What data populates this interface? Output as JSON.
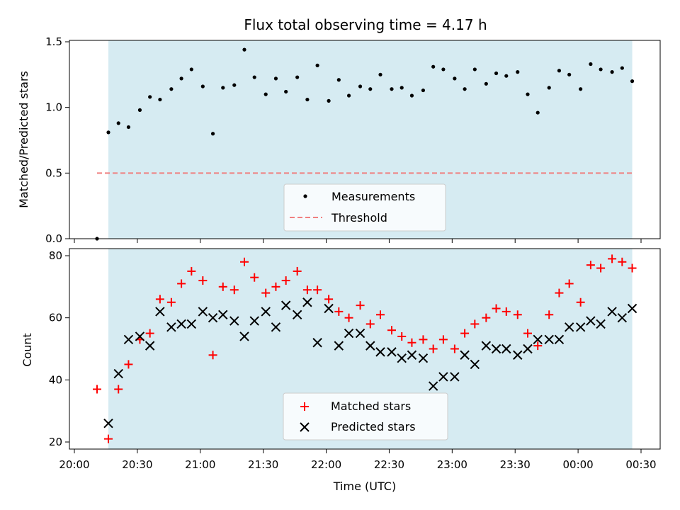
{
  "chart_data": [
    {
      "type": "scatter",
      "title": "Flux total observing time = 4.17 h",
      "xlabel": "",
      "ylabel": "Matched/Predicted stars",
      "ylim": [
        0,
        1.5
      ],
      "yticks": [
        "0.0",
        "0.5",
        "1.0",
        "1.5"
      ],
      "ytick_values": [
        0,
        0.5,
        1.0,
        1.5
      ],
      "observing_window_hours": [
        20.27,
        24.43
      ],
      "threshold": 0.5,
      "legend_location": "lower-center",
      "legend": [
        "Measurements",
        "Threshold"
      ],
      "series": [
        {
          "name": "Measurements",
          "marker": "dot",
          "color": "#000000",
          "x": [
            20.18,
            20.27,
            20.35,
            20.43,
            20.52,
            20.6,
            20.68,
            20.77,
            20.85,
            20.93,
            21.02,
            21.1,
            21.18,
            21.27,
            21.35,
            21.43,
            21.52,
            21.6,
            21.68,
            21.77,
            21.85,
            21.93,
            22.02,
            22.1,
            22.18,
            22.27,
            22.35,
            22.43,
            22.52,
            22.6,
            22.68,
            22.77,
            22.85,
            22.93,
            23.02,
            23.1,
            23.18,
            23.27,
            23.35,
            23.43,
            23.52,
            23.6,
            23.68,
            23.77,
            23.85,
            23.93,
            24.02,
            24.1,
            24.18,
            24.27,
            24.35,
            24.43
          ],
          "y": [
            0.0,
            0.81,
            0.88,
            0.85,
            0.98,
            1.08,
            1.06,
            1.14,
            1.22,
            1.29,
            1.16,
            0.8,
            1.15,
            1.17,
            1.44,
            1.23,
            1.1,
            1.22,
            1.12,
            1.23,
            1.06,
            1.32,
            1.05,
            1.21,
            1.09,
            1.16,
            1.14,
            1.25,
            1.14,
            1.15,
            1.09,
            1.13,
            1.31,
            1.29,
            1.22,
            1.14,
            1.29,
            1.18,
            1.26,
            1.24,
            1.27,
            1.1,
            0.96,
            1.15,
            1.28,
            1.25,
            1.14,
            1.33,
            1.29,
            1.27,
            1.3,
            1.2
          ]
        },
        {
          "name": "Threshold",
          "style": "dashed",
          "color": "#f08080",
          "x": [
            20.18,
            24.43
          ],
          "y": [
            0.5,
            0.5
          ]
        }
      ]
    },
    {
      "type": "scatter",
      "xlabel": "Time (UTC)",
      "ylabel": "Count",
      "ylim": [
        18,
        82
      ],
      "yticks": [
        "20",
        "40",
        "60",
        "80"
      ],
      "ytick_values": [
        20,
        40,
        60,
        80
      ],
      "xlim": [
        20.0,
        24.6
      ],
      "xticks": [
        "20:00",
        "20:30",
        "21:00",
        "21:30",
        "22:00",
        "22:30",
        "23:00",
        "23:30",
        "00:00",
        "00:30"
      ],
      "xtick_values": [
        20.0,
        20.5,
        21.0,
        21.5,
        22.0,
        22.5,
        23.0,
        23.5,
        24.0,
        24.5
      ],
      "observing_window_hours": [
        20.27,
        24.43
      ],
      "legend_location": "lower-center",
      "legend": [
        "Matched stars",
        "Predicted stars"
      ],
      "series": [
        {
          "name": "Matched stars",
          "marker": "plus",
          "color": "#ff0000",
          "x": [
            20.18,
            20.27,
            20.35,
            20.43,
            20.52,
            20.6,
            20.68,
            20.77,
            20.85,
            20.93,
            21.02,
            21.1,
            21.18,
            21.27,
            21.35,
            21.43,
            21.52,
            21.6,
            21.68,
            21.77,
            21.85,
            21.93,
            22.02,
            22.1,
            22.18,
            22.27,
            22.35,
            22.43,
            22.52,
            22.6,
            22.68,
            22.77,
            22.85,
            22.93,
            23.02,
            23.1,
            23.18,
            23.27,
            23.35,
            23.43,
            23.52,
            23.6,
            23.68,
            23.77,
            23.85,
            23.93,
            24.02,
            24.1,
            24.18,
            24.27,
            24.35,
            24.43
          ],
          "y": [
            37,
            21,
            37,
            45,
            53,
            55,
            66,
            65,
            71,
            75,
            72,
            48,
            70,
            69,
            78,
            73,
            68,
            70,
            72,
            75,
            69,
            69,
            66,
            62,
            60,
            64,
            58,
            61,
            56,
            54,
            52,
            53,
            50,
            53,
            50,
            55,
            58,
            60,
            63,
            62,
            61,
            55,
            51,
            61,
            68,
            71,
            65,
            77,
            76,
            79,
            78,
            76
          ]
        },
        {
          "name": "Predicted stars",
          "marker": "x",
          "color": "#000000",
          "x": [
            20.27,
            20.35,
            20.43,
            20.52,
            20.6,
            20.68,
            20.77,
            20.85,
            20.93,
            21.02,
            21.1,
            21.18,
            21.27,
            21.35,
            21.43,
            21.52,
            21.6,
            21.68,
            21.77,
            21.85,
            21.93,
            22.02,
            22.1,
            22.18,
            22.27,
            22.35,
            22.43,
            22.52,
            22.6,
            22.68,
            22.77,
            22.85,
            22.93,
            23.02,
            23.1,
            23.18,
            23.27,
            23.35,
            23.43,
            23.52,
            23.6,
            23.68,
            23.77,
            23.85,
            23.93,
            24.02,
            24.1,
            24.18,
            24.27,
            24.35,
            24.43
          ],
          "y": [
            26,
            42,
            53,
            54,
            51,
            62,
            57,
            58,
            58,
            62,
            60,
            61,
            59,
            54,
            59,
            62,
            57,
            64,
            61,
            65,
            52,
            63,
            51,
            55,
            55,
            51,
            49,
            49,
            47,
            48,
            47,
            38,
            41,
            41,
            48,
            45,
            51,
            50,
            50,
            48,
            50,
            53,
            53,
            53,
            57,
            57,
            59,
            58,
            62,
            60,
            63
          ]
        }
      ]
    }
  ]
}
